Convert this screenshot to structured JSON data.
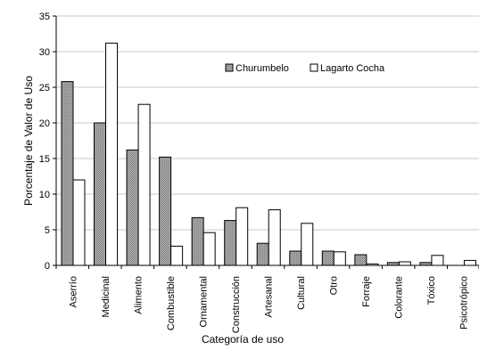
{
  "chart_data": {
    "type": "bar",
    "title": "",
    "xlabel": "Categoría de uso",
    "ylabel": "Porcentaje de Valor de Uso",
    "ylim": [
      0,
      35
    ],
    "yticks": [
      0,
      5,
      10,
      15,
      20,
      25,
      30,
      35
    ],
    "grid": true,
    "legend_position": "top-right",
    "categories": [
      "Aserrío",
      "Medicinal",
      "Alimento",
      "Combustible",
      "Ornamental",
      "Construcción",
      "Artesanal",
      "Cultural",
      "Otro",
      "Forraje",
      "Colorante",
      "Tóxico",
      "Psicotrópico"
    ],
    "series": [
      {
        "name": "Churumbelo",
        "color": "#a0a0a0",
        "values": [
          25.8,
          20.0,
          16.2,
          15.2,
          6.7,
          6.3,
          3.1,
          2.0,
          2.0,
          1.5,
          0.4,
          0.4,
          0.0
        ]
      },
      {
        "name": "Lagarto Cocha",
        "color": "#ffffff",
        "values": [
          12.0,
          31.2,
          22.6,
          2.7,
          4.6,
          8.1,
          7.8,
          5.9,
          1.9,
          0.2,
          0.5,
          1.4,
          0.7
        ]
      }
    ]
  }
}
